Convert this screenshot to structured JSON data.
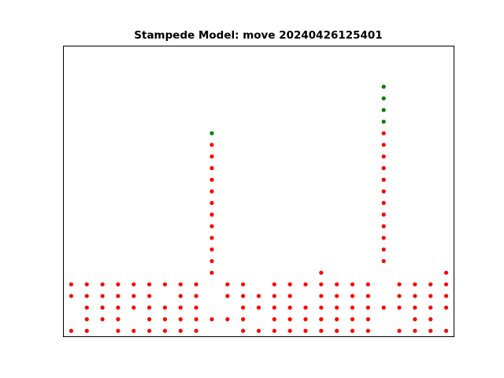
{
  "chart_data": {
    "type": "scatter",
    "title": "Stampede Model: move 20240426125401",
    "xlabel": "",
    "ylabel": "",
    "xlim": [
      -0.5,
      24.5
    ],
    "ylim": [
      -0.5,
      24.5
    ],
    "grid": false,
    "legend": "none",
    "series": [
      {
        "color": "#ff0000",
        "points": [
          [
            0,
            0
          ],
          [
            0,
            3
          ],
          [
            0,
            4
          ],
          [
            1,
            0
          ],
          [
            1,
            1
          ],
          [
            1,
            2
          ],
          [
            1,
            3
          ],
          [
            1,
            4
          ],
          [
            2,
            1
          ],
          [
            2,
            2
          ],
          [
            2,
            3
          ],
          [
            2,
            4
          ],
          [
            3,
            0
          ],
          [
            3,
            1
          ],
          [
            3,
            2
          ],
          [
            3,
            3
          ],
          [
            3,
            4
          ],
          [
            4,
            0
          ],
          [
            4,
            2
          ],
          [
            4,
            3
          ],
          [
            4,
            4
          ],
          [
            5,
            0
          ],
          [
            5,
            1
          ],
          [
            5,
            2
          ],
          [
            5,
            3
          ],
          [
            5,
            4
          ],
          [
            6,
            0
          ],
          [
            6,
            1
          ],
          [
            6,
            2
          ],
          [
            6,
            4
          ],
          [
            7,
            0
          ],
          [
            7,
            1
          ],
          [
            7,
            2
          ],
          [
            7,
            3
          ],
          [
            7,
            4
          ],
          [
            8,
            0
          ],
          [
            8,
            1
          ],
          [
            8,
            2
          ],
          [
            8,
            3
          ],
          [
            8,
            4
          ],
          [
            9,
            1
          ],
          [
            9,
            5
          ],
          [
            9,
            6
          ],
          [
            9,
            7
          ],
          [
            9,
            8
          ],
          [
            9,
            9
          ],
          [
            9,
            10
          ],
          [
            9,
            11
          ],
          [
            9,
            12
          ],
          [
            9,
            13
          ],
          [
            9,
            14
          ],
          [
            9,
            15
          ],
          [
            9,
            16
          ],
          [
            10,
            1
          ],
          [
            10,
            3
          ],
          [
            10,
            4
          ],
          [
            11,
            0
          ],
          [
            11,
            1
          ],
          [
            11,
            2
          ],
          [
            11,
            3
          ],
          [
            11,
            4
          ],
          [
            12,
            0
          ],
          [
            12,
            2
          ],
          [
            12,
            3
          ],
          [
            13,
            0
          ],
          [
            13,
            1
          ],
          [
            13,
            2
          ],
          [
            13,
            3
          ],
          [
            13,
            4
          ],
          [
            14,
            0
          ],
          [
            14,
            1
          ],
          [
            14,
            2
          ],
          [
            14,
            3
          ],
          [
            14,
            4
          ],
          [
            15,
            0
          ],
          [
            15,
            1
          ],
          [
            15,
            2
          ],
          [
            15,
            4
          ],
          [
            16,
            0
          ],
          [
            16,
            1
          ],
          [
            16,
            2
          ],
          [
            16,
            3
          ],
          [
            16,
            4
          ],
          [
            16,
            5
          ],
          [
            17,
            0
          ],
          [
            17,
            1
          ],
          [
            17,
            2
          ],
          [
            17,
            3
          ],
          [
            17,
            4
          ],
          [
            18,
            0
          ],
          [
            18,
            1
          ],
          [
            18,
            2
          ],
          [
            18,
            3
          ],
          [
            18,
            4
          ],
          [
            19,
            0
          ],
          [
            19,
            1
          ],
          [
            19,
            2
          ],
          [
            19,
            3
          ],
          [
            19,
            4
          ],
          [
            20,
            2
          ],
          [
            20,
            6
          ],
          [
            20,
            7
          ],
          [
            20,
            8
          ],
          [
            20,
            9
          ],
          [
            20,
            10
          ],
          [
            20,
            11
          ],
          [
            20,
            12
          ],
          [
            20,
            13
          ],
          [
            20,
            14
          ],
          [
            20,
            15
          ],
          [
            20,
            16
          ],
          [
            20,
            17
          ],
          [
            21,
            0
          ],
          [
            21,
            2
          ],
          [
            21,
            3
          ],
          [
            21,
            4
          ],
          [
            22,
            0
          ],
          [
            22,
            1
          ],
          [
            22,
            2
          ],
          [
            22,
            3
          ],
          [
            22,
            4
          ],
          [
            23,
            0
          ],
          [
            23,
            1
          ],
          [
            23,
            2
          ],
          [
            23,
            3
          ],
          [
            23,
            4
          ],
          [
            24,
            0
          ],
          [
            24,
            2
          ],
          [
            24,
            3
          ],
          [
            24,
            4
          ],
          [
            24,
            5
          ]
        ]
      },
      {
        "color": "#008000",
        "points": [
          [
            9,
            17
          ],
          [
            20,
            18
          ],
          [
            20,
            19
          ],
          [
            20,
            20
          ],
          [
            20,
            21
          ]
        ]
      }
    ]
  }
}
